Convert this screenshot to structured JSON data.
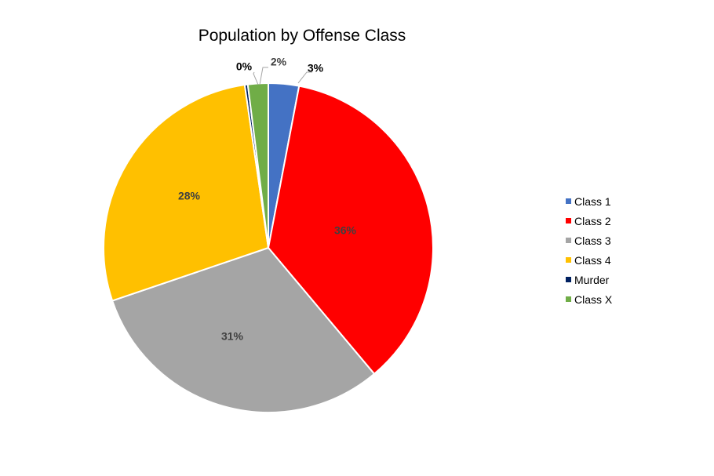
{
  "chart_data": {
    "type": "pie",
    "title": "Population by Offense Class",
    "slices": [
      {
        "label": "Class 1",
        "value": 3,
        "data_label": "3%",
        "color": "#4472C4"
      },
      {
        "label": "Class 2",
        "value": 36,
        "data_label": "36%",
        "color": "#FF0000"
      },
      {
        "label": "Class 3",
        "value": 31,
        "data_label": "31%",
        "color": "#A5A5A5"
      },
      {
        "label": "Class 4",
        "value": 28,
        "data_label": "28%",
        "color": "#FFC000"
      },
      {
        "label": "Murder",
        "value": 0.3,
        "data_label": "0%",
        "color": "#002060"
      },
      {
        "label": "Class X",
        "value": 2,
        "data_label": "2%",
        "color": "#70AD47"
      }
    ],
    "legend_position": "right"
  }
}
